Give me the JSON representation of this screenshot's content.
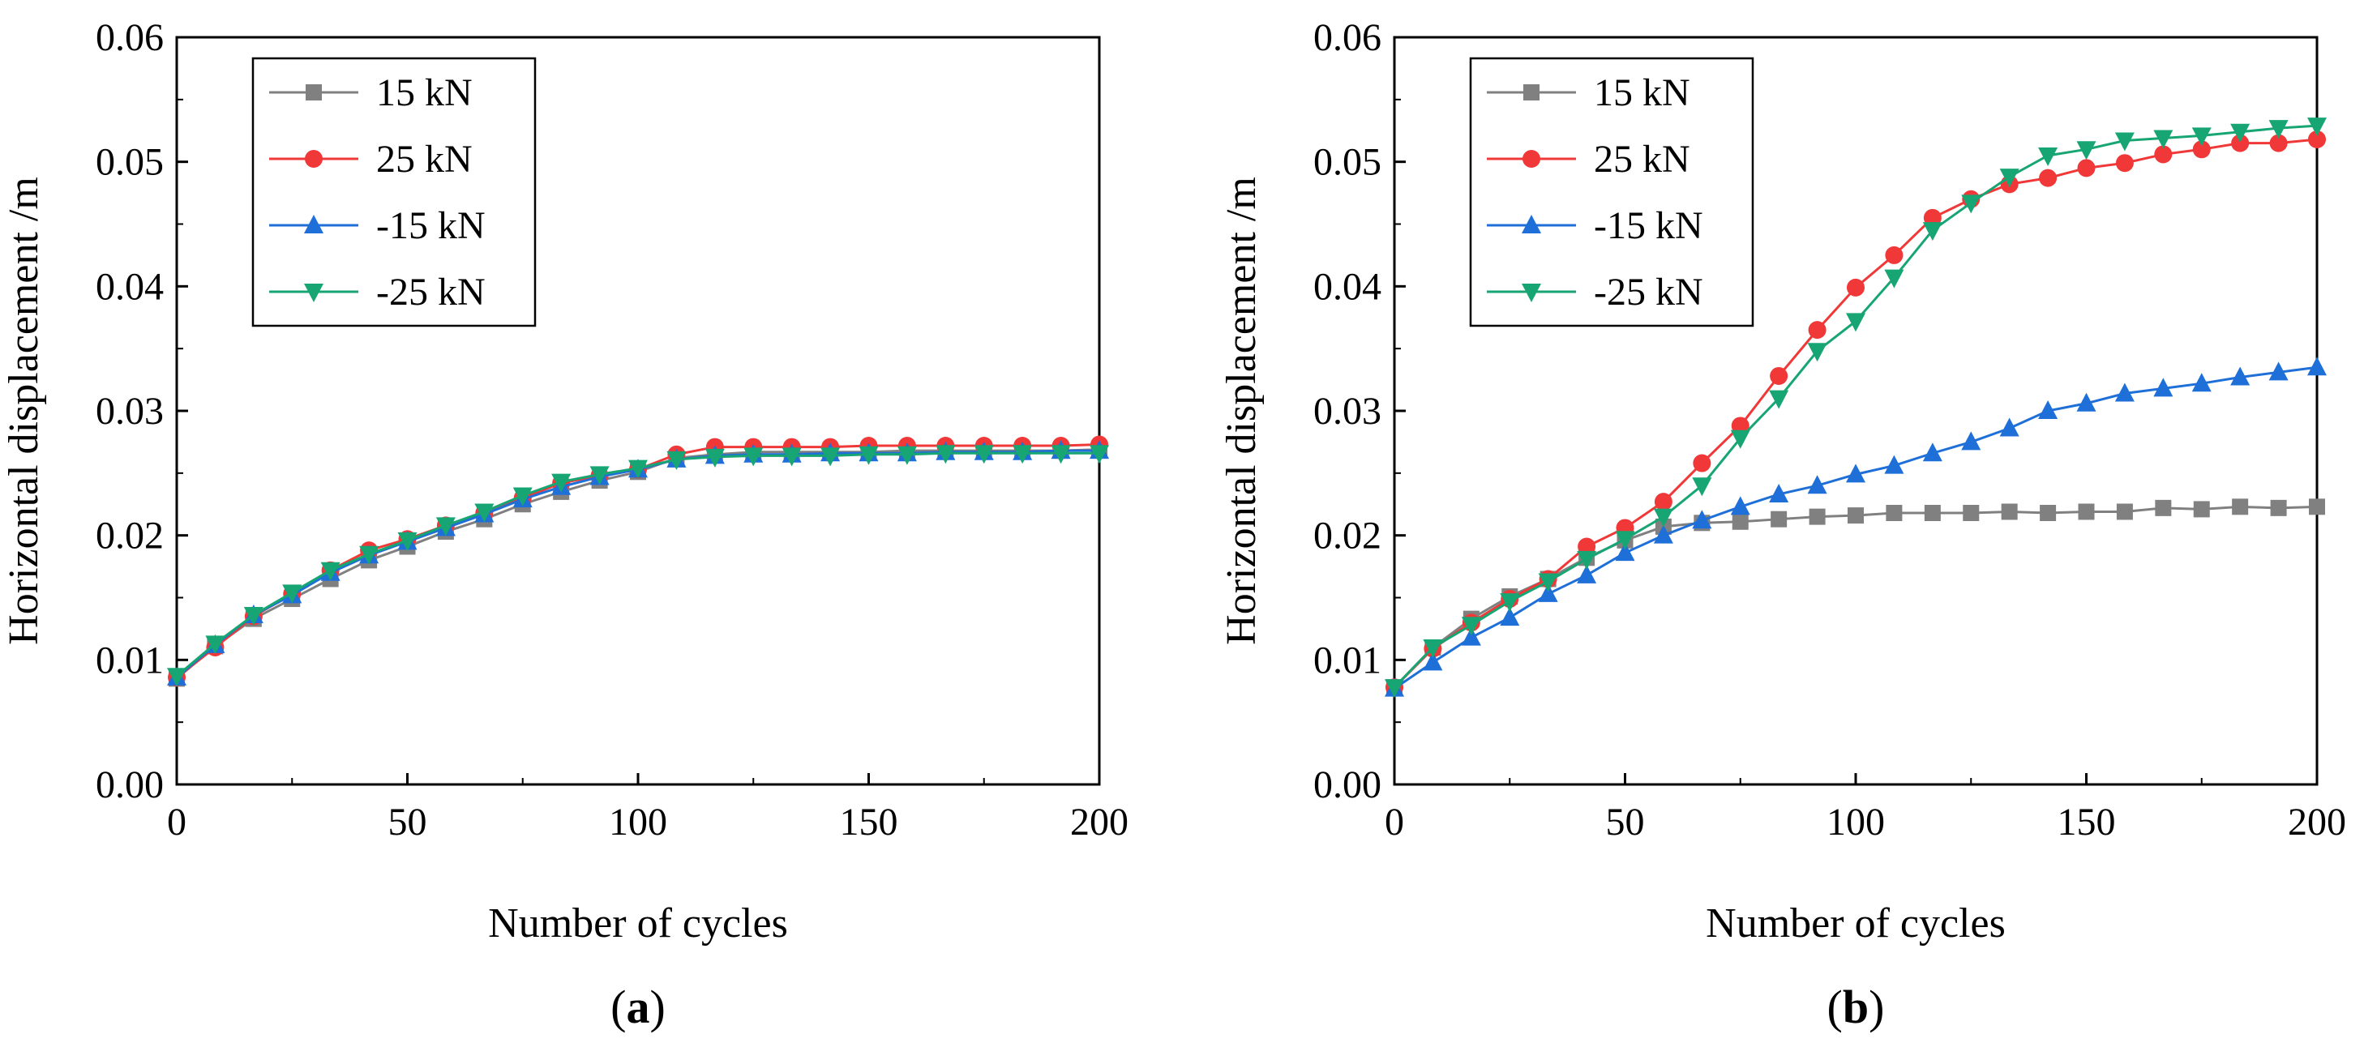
{
  "chart_data": [
    {
      "type": "line",
      "panel_label": "a",
      "xlabel": "Number of cycles",
      "ylabel": "Horizontal displacement /m",
      "xlim": [
        0,
        200
      ],
      "ylim": [
        0,
        0.06
      ],
      "x_ticks": [
        "0",
        "50",
        "100",
        "150",
        "200"
      ],
      "y_ticks": [
        "0.00",
        "0.01",
        "0.02",
        "0.03",
        "0.04",
        "0.05",
        "0.06"
      ],
      "legend_position": "top-left",
      "x": [
        0,
        8.33,
        16.67,
        25,
        33.33,
        41.67,
        50,
        58.33,
        66.67,
        75,
        83.33,
        91.67,
        100,
        108.33,
        116.67,
        125,
        133.33,
        141.67,
        150,
        158.33,
        166.67,
        175,
        183.33,
        191.67,
        200
      ],
      "series": [
        {
          "name": "15 kN",
          "color": "#808080",
          "marker": "square",
          "values": [
            0.0085,
            0.0111,
            0.0133,
            0.0149,
            0.0165,
            0.018,
            0.0191,
            0.0203,
            0.0213,
            0.0225,
            0.0235,
            0.0244,
            0.0251,
            0.0262,
            0.0265,
            0.0267,
            0.0267,
            0.0267,
            0.0267,
            0.0268,
            0.0268,
            0.0268,
            0.0268,
            0.0268,
            0.0269
          ]
        },
        {
          "name": "25 kN",
          "color": "#f03838",
          "marker": "circle",
          "values": [
            0.0086,
            0.011,
            0.0135,
            0.0153,
            0.0172,
            0.0188,
            0.0197,
            0.0208,
            0.0218,
            0.023,
            0.0242,
            0.0248,
            0.0253,
            0.0265,
            0.0271,
            0.0271,
            0.0271,
            0.0271,
            0.0272,
            0.0272,
            0.0272,
            0.0272,
            0.0272,
            0.0272,
            0.0273
          ]
        },
        {
          "name": "-15 kN",
          "color": "#1f6fd8",
          "marker": "triangle-up",
          "values": [
            0.0086,
            0.0112,
            0.0136,
            0.0152,
            0.017,
            0.0184,
            0.0195,
            0.0206,
            0.0217,
            0.0229,
            0.0239,
            0.0247,
            0.0253,
            0.0261,
            0.0264,
            0.0265,
            0.0265,
            0.0266,
            0.0266,
            0.0266,
            0.0267,
            0.0267,
            0.0267,
            0.0268,
            0.0268
          ]
        },
        {
          "name": "-25 kN",
          "color": "#17a673",
          "marker": "triangle-down",
          "values": [
            0.0087,
            0.0113,
            0.0136,
            0.0154,
            0.0172,
            0.0185,
            0.0196,
            0.0208,
            0.0219,
            0.0232,
            0.0243,
            0.0249,
            0.0254,
            0.0261,
            0.0263,
            0.0264,
            0.0264,
            0.0264,
            0.0265,
            0.0265,
            0.0266,
            0.0266,
            0.0266,
            0.0266,
            0.0266
          ]
        }
      ]
    },
    {
      "type": "line",
      "panel_label": "b",
      "xlabel": "Number of cycles",
      "ylabel": "Horizontal displacement /m",
      "xlim": [
        0,
        200
      ],
      "ylim": [
        0,
        0.06
      ],
      "x_ticks": [
        "0",
        "50",
        "100",
        "150",
        "200"
      ],
      "y_ticks": [
        "0.00",
        "0.01",
        "0.02",
        "0.03",
        "0.04",
        "0.05",
        "0.06"
      ],
      "legend_position": "top-left",
      "x": [
        0,
        8.33,
        16.67,
        25,
        33.33,
        41.67,
        50,
        58.33,
        66.67,
        75,
        83.33,
        91.67,
        100,
        108.33,
        116.67,
        125,
        133.33,
        141.67,
        150,
        158.33,
        166.67,
        175,
        183.33,
        191.67,
        200
      ],
      "series": [
        {
          "name": "15 kN",
          "color": "#808080",
          "marker": "square",
          "values": [
            0.0078,
            0.011,
            0.0133,
            0.0151,
            0.0165,
            0.0182,
            0.0196,
            0.0207,
            0.021,
            0.0211,
            0.0213,
            0.0215,
            0.0216,
            0.0218,
            0.0218,
            0.0218,
            0.0219,
            0.0218,
            0.0219,
            0.0219,
            0.0222,
            0.0221,
            0.0223,
            0.0222,
            0.0223
          ]
        },
        {
          "name": "25 kN",
          "color": "#f03838",
          "marker": "circle",
          "values": [
            0.0078,
            0.0109,
            0.013,
            0.0149,
            0.0165,
            0.0191,
            0.0206,
            0.0227,
            0.0258,
            0.0288,
            0.0328,
            0.0365,
            0.0399,
            0.0425,
            0.0455,
            0.047,
            0.0482,
            0.0487,
            0.0495,
            0.0499,
            0.0506,
            0.051,
            0.0515,
            0.0515,
            0.0518
          ]
        },
        {
          "name": "-15 kN",
          "color": "#1f6fd8",
          "marker": "triangle-up",
          "values": [
            0.0077,
            0.0098,
            0.0118,
            0.0134,
            0.0153,
            0.0168,
            0.0186,
            0.02,
            0.0212,
            0.0223,
            0.0233,
            0.024,
            0.0249,
            0.0256,
            0.0266,
            0.0275,
            0.0286,
            0.03,
            0.0306,
            0.0314,
            0.0318,
            0.0322,
            0.0327,
            0.0331,
            0.0335
          ]
        },
        {
          "name": "-25 kN",
          "color": "#17a673",
          "marker": "triangle-down",
          "values": [
            0.0078,
            0.011,
            0.0128,
            0.0147,
            0.0163,
            0.0181,
            0.0197,
            0.0215,
            0.024,
            0.0278,
            0.031,
            0.0348,
            0.0372,
            0.0407,
            0.0445,
            0.0467,
            0.0488,
            0.0505,
            0.051,
            0.0517,
            0.0519,
            0.0521,
            0.0524,
            0.0527,
            0.0529
          ]
        }
      ]
    }
  ]
}
